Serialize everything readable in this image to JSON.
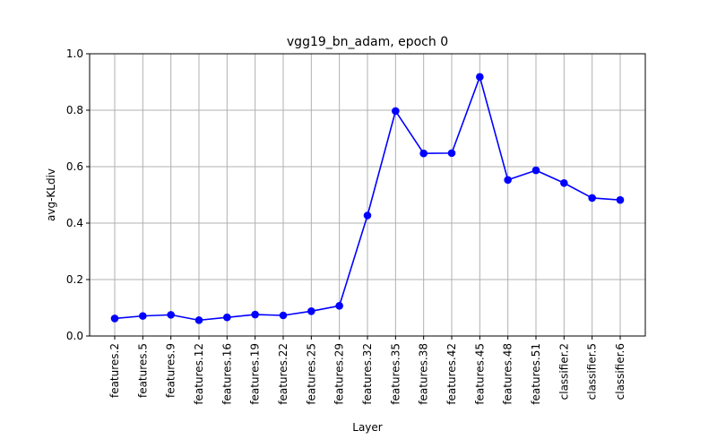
{
  "chart_data": {
    "type": "line",
    "title": "vgg19_bn_adam, epoch 0",
    "xlabel": "Layer",
    "ylabel": "avg-KLdiv",
    "categories": [
      "features.2",
      "features.5",
      "features.9",
      "features.12",
      "features.16",
      "features.19",
      "features.22",
      "features.25",
      "features.29",
      "features.32",
      "features.35",
      "features.38",
      "features.42",
      "features.45",
      "features.48",
      "features.51",
      "classifier.2",
      "classifier.5",
      "classifier.6"
    ],
    "series": [
      {
        "values": [
          0.062,
          0.071,
          0.075,
          0.056,
          0.066,
          0.076,
          0.073,
          0.088,
          0.107,
          0.427,
          0.797,
          0.647,
          0.648,
          0.918,
          0.553,
          0.587,
          0.542,
          0.489,
          0.482
        ],
        "color": "#0000ff",
        "marker": "circle"
      }
    ],
    "ylim": [
      0.0,
      1.0
    ],
    "yticks": [
      "0.0",
      "0.2",
      "0.4",
      "0.6",
      "0.8",
      "1.0"
    ],
    "ytick_values": [
      0.0,
      0.2,
      0.4,
      0.6,
      0.8,
      1.0
    ],
    "grid": true,
    "legend": "none"
  }
}
